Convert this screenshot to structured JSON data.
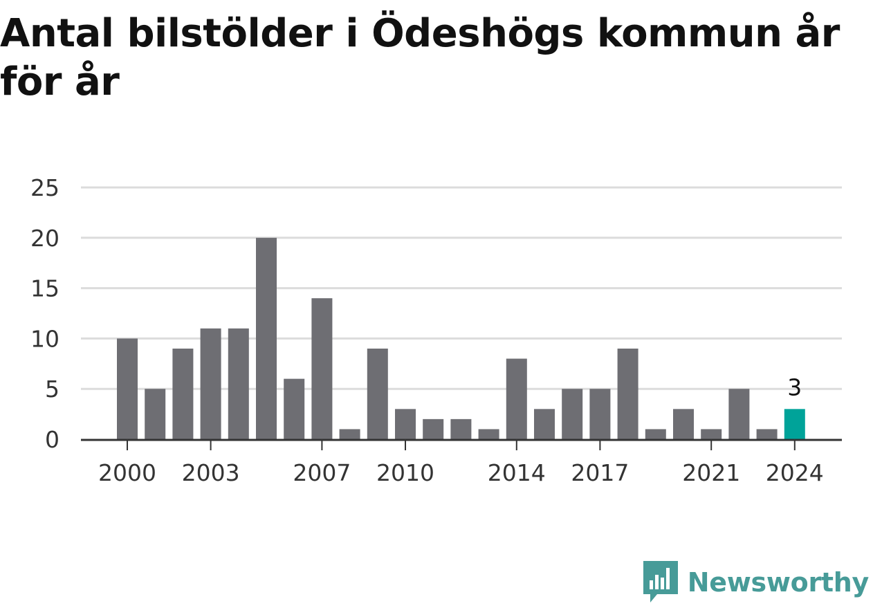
{
  "chart_data": {
    "type": "bar",
    "title": "Antal bilstölder i Ödeshögs kommun år för år",
    "xlabel": "",
    "ylabel": "",
    "ylim": [
      0,
      25
    ],
    "yticks": [
      0,
      5,
      10,
      15,
      20,
      25
    ],
    "xtick_labels": [
      "2000",
      "2003",
      "2007",
      "2010",
      "2014",
      "2017",
      "2021",
      "2024"
    ],
    "categories": [
      "2000",
      "2001",
      "2002",
      "2003",
      "2004",
      "2005",
      "2006",
      "2007",
      "2008",
      "2009",
      "2010",
      "2011",
      "2012",
      "2013",
      "2014",
      "2015",
      "2016",
      "2017",
      "2018",
      "2019",
      "2020",
      "2021",
      "2022",
      "2023",
      "2024"
    ],
    "values": [
      10,
      5,
      9,
      11,
      11,
      20,
      6,
      14,
      1,
      9,
      3,
      2,
      2,
      1,
      8,
      3,
      5,
      5,
      9,
      1,
      3,
      1,
      5,
      1,
      3
    ],
    "highlight": {
      "category": "2024",
      "label": "3"
    },
    "grid": true,
    "colors": {
      "bar": "#6e6e73",
      "highlight": "#00a399",
      "grid": "#dcdcdc",
      "axis": "#333333"
    }
  },
  "branding": {
    "name": "Newsworthy",
    "color": "#479b98",
    "logo_icon": "bar-chart-speech-bubble-icon"
  }
}
